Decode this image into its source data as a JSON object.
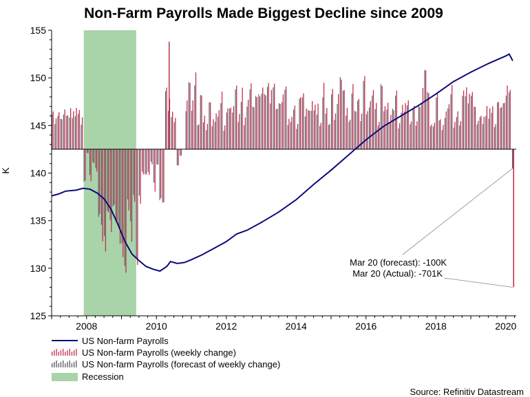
{
  "colors": {
    "payrolls": "#0a0a7a",
    "weekly": "#c0304a",
    "forecast": "#555566",
    "recession": "#a9d3a9",
    "axis": "#000000"
  },
  "chart_data": {
    "type": "line",
    "title": "Non-Farm Payrolls Made Biggest Decline since 2009",
    "ylabel": "K",
    "xlabel": "",
    "xlim": [
      2007.0,
      2020.3
    ],
    "ylim": [
      125,
      155
    ],
    "xticks": [
      "2008",
      "2010",
      "2012",
      "2014",
      "2016",
      "2018",
      "2020"
    ],
    "yticks": [
      "125",
      "130",
      "135",
      "140",
      "145",
      "150",
      "155"
    ],
    "grid": false,
    "legend_position": "bottom-left",
    "baseline": 142.5,
    "recession": {
      "name": "Recession",
      "start": 2007.92,
      "end": 2009.42
    },
    "series": [
      {
        "name": "US Non-farm Payrolls",
        "kind": "line",
        "points": [
          [
            2007.0,
            137.6
          ],
          [
            2007.2,
            137.8
          ],
          [
            2007.4,
            138.1
          ],
          [
            2007.7,
            138.2
          ],
          [
            2007.9,
            138.4
          ],
          [
            2008.1,
            138.3
          ],
          [
            2008.3,
            137.9
          ],
          [
            2008.5,
            137.3
          ],
          [
            2008.7,
            136.2
          ],
          [
            2008.9,
            134.6
          ],
          [
            2009.1,
            132.8
          ],
          [
            2009.3,
            131.5
          ],
          [
            2009.5,
            130.8
          ],
          [
            2009.7,
            130.2
          ],
          [
            2009.9,
            129.9
          ],
          [
            2010.1,
            129.7
          ],
          [
            2010.3,
            130.2
          ],
          [
            2010.4,
            130.7
          ],
          [
            2010.6,
            130.5
          ],
          [
            2010.8,
            130.6
          ],
          [
            2011.0,
            130.9
          ],
          [
            2011.3,
            131.4
          ],
          [
            2011.6,
            132.0
          ],
          [
            2012.0,
            132.8
          ],
          [
            2012.3,
            133.6
          ],
          [
            2012.6,
            134.0
          ],
          [
            2013.0,
            134.8
          ],
          [
            2013.5,
            135.9
          ],
          [
            2014.0,
            137.2
          ],
          [
            2014.5,
            138.8
          ],
          [
            2015.0,
            140.3
          ],
          [
            2015.5,
            141.9
          ],
          [
            2016.0,
            143.5
          ],
          [
            2016.5,
            144.9
          ],
          [
            2017.0,
            146.0
          ],
          [
            2017.5,
            147.1
          ],
          [
            2018.0,
            148.3
          ],
          [
            2018.5,
            149.6
          ],
          [
            2019.0,
            150.6
          ],
          [
            2019.5,
            151.5
          ],
          [
            2020.0,
            152.3
          ],
          [
            2020.1,
            152.5
          ],
          [
            2020.2,
            151.8
          ]
        ]
      },
      {
        "name": "US Non-farm Payrolls (weekly change)",
        "kind": "bars"
      },
      {
        "name": "US Non-farm Payrolls (forecast of weekly change)",
        "kind": "bars"
      }
    ],
    "annotations": [
      {
        "text": "Mar 20 (forecast): -100K",
        "x": 2020.2,
        "y": 140.5
      },
      {
        "text": "Mar 20 (Actual): -701K",
        "x": 2020.2,
        "y": 128.0
      }
    ],
    "source": "Source: Refinitiv Datastream"
  }
}
